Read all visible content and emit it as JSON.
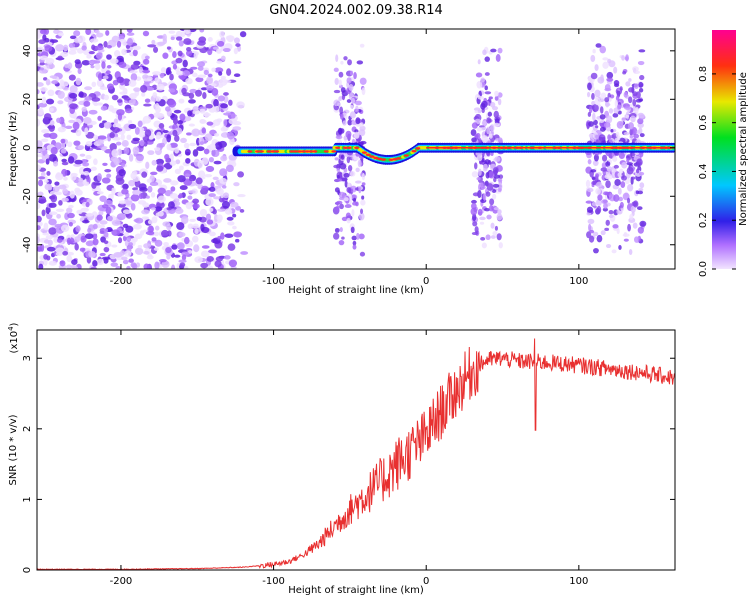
{
  "page": {
    "title": "GN04.2024.002.09.38.R14"
  },
  "chart_data": [
    {
      "type": "heatmap",
      "title": "GN04.2024.002.09.38.R14",
      "xlabel": "Height of straight line (km)",
      "ylabel": "Frequency (Hz)",
      "xlim": [
        -255,
        163
      ],
      "ylim": [
        -50,
        49
      ],
      "xticks": [
        -200,
        -100,
        0,
        100
      ],
      "yticks": [
        -40,
        -20,
        0,
        20,
        40
      ],
      "colorbar": {
        "label": "Normalized spectral amplitude",
        "range": [
          0.0,
          0.98
        ],
        "ticks": [
          0.0,
          0.2,
          0.4,
          0.6,
          0.8
        ],
        "colormap": [
          "#f0d8ff",
          "#7a2bd8",
          "#1010e0",
          "#00d8ff",
          "#00e000",
          "#e8e800",
          "#ff2020",
          "#ff0090"
        ]
      },
      "features": {
        "noise_region_x": [
          -255,
          -118
        ],
        "carrier_frequency_hz": 0,
        "dip": {
          "x_range": [
            -45,
            -5
          ],
          "min_frequency_hz": -5
        },
        "vertical_bursts_x": [
          -50,
          40,
          115,
          133
        ]
      }
    },
    {
      "type": "line",
      "title": "",
      "xlabel": "Height of straight line (km)",
      "ylabel": "SNR (10 * v/v)",
      "y_multiplier": "(x10",
      "y_multiplier_exp": "4",
      "xlim": [
        -255,
        163
      ],
      "ylim": [
        0,
        3.4
      ],
      "xticks": [
        -200,
        -100,
        0,
        100
      ],
      "yticks": [
        0,
        1,
        2,
        3
      ],
      "color": "#e83030",
      "series": [
        {
          "x": [
            -255,
            -200,
            -150,
            -120,
            -100,
            -90,
            -80,
            -70,
            -60,
            -50,
            -40,
            -30,
            -20,
            -10,
            0,
            10,
            20,
            30,
            40,
            50,
            60,
            70,
            80,
            100,
            120,
            140,
            163
          ],
          "y": [
            0.01,
            0.01,
            0.02,
            0.04,
            0.08,
            0.12,
            0.22,
            0.38,
            0.62,
            0.85,
            1.05,
            1.25,
            1.48,
            1.68,
            1.9,
            2.25,
            2.55,
            2.82,
            2.98,
            3.0,
            2.96,
            2.95,
            2.94,
            2.9,
            2.85,
            2.8,
            2.72
          ]
        }
      ],
      "annotations": [
        {
          "x": 71,
          "y": 3.28,
          "type": "spike"
        },
        {
          "x": 71,
          "y": 1.98,
          "type": "dip"
        }
      ]
    }
  ]
}
